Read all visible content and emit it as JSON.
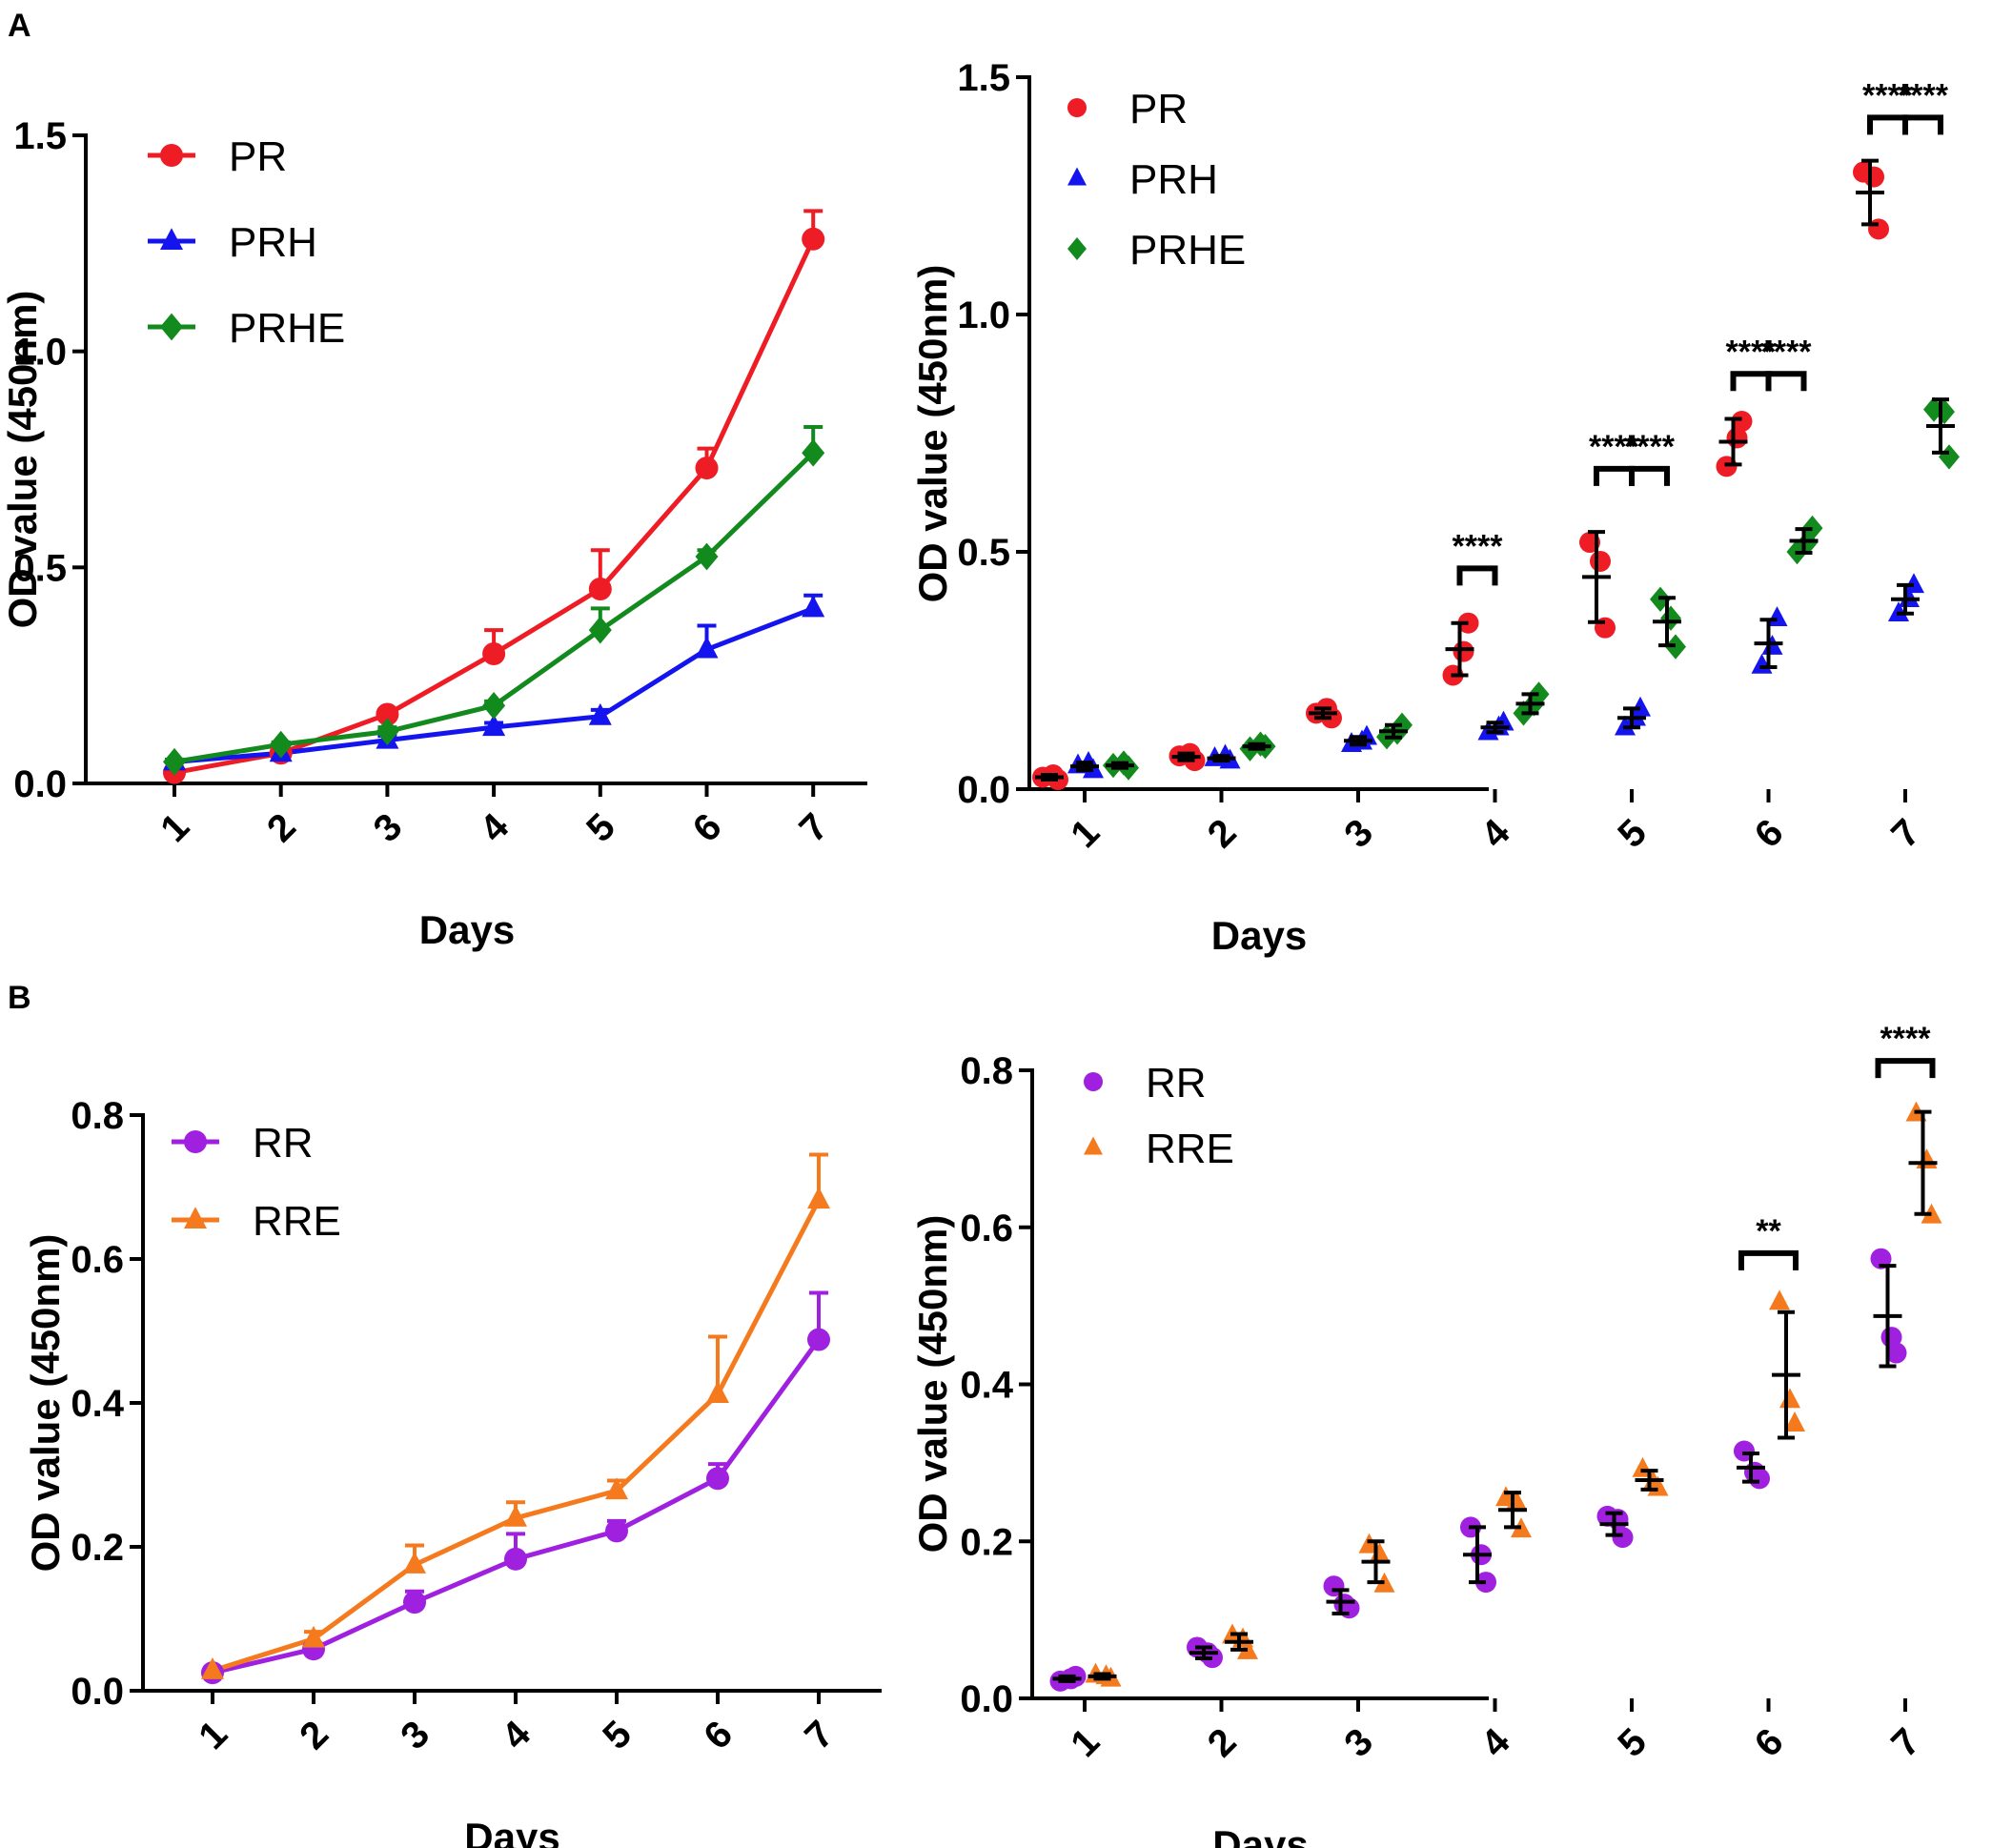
{
  "panel_labels": {
    "a": "A",
    "b": "B"
  },
  "legend_labels": {
    "p1": [
      "PR",
      "PRH",
      "PRHE"
    ],
    "p2": [
      "PR",
      "PRH",
      "PRHE"
    ],
    "p3": [
      "RR",
      "RRE"
    ],
    "p4": [
      "RR",
      "RRE"
    ]
  },
  "chart_data": [
    {
      "id": "A-left",
      "type": "line",
      "title": "",
      "xlabel": "Days",
      "ylabel": "OD value (450nm)",
      "categories": [
        "1",
        "2",
        "3",
        "4",
        "5",
        "6",
        "7"
      ],
      "yticks": [
        "0.0",
        "0.5",
        "1.0",
        "1.5"
      ],
      "ylim": [
        0,
        1.5
      ],
      "legend_position": "top-left",
      "series": [
        {
          "name": "PR",
          "color": "#ee1c24",
          "marker": "circle",
          "values": [
            0.025,
            0.07,
            0.16,
            0.3,
            0.45,
            0.73,
            1.26
          ],
          "errors": [
            0.01,
            0.01,
            0.01,
            0.055,
            0.09,
            0.045,
            0.065
          ]
        },
        {
          "name": "PRH",
          "color": "#1414ee",
          "marker": "triangle",
          "values": [
            0.05,
            0.07,
            0.1,
            0.13,
            0.155,
            0.31,
            0.405
          ],
          "errors": [
            0.005,
            0.005,
            0.01,
            0.01,
            0.015,
            0.055,
            0.03
          ]
        },
        {
          "name": "PRHE",
          "color": "#138a1e",
          "marker": "diamond",
          "values": [
            0.05,
            0.09,
            0.12,
            0.18,
            0.355,
            0.525,
            0.765
          ],
          "errors": [
            0.005,
            0.005,
            0.01,
            0.01,
            0.05,
            0.015,
            0.06
          ]
        }
      ]
    },
    {
      "id": "A-right",
      "type": "scatter",
      "title": "",
      "xlabel": "Days",
      "ylabel": "OD value (450nm)",
      "categories": [
        "1",
        "2",
        "3",
        "4",
        "5",
        "6",
        "7"
      ],
      "yticks": [
        "0.0",
        "0.5",
        "1.0",
        "1.5"
      ],
      "ylim": [
        0,
        1.5
      ],
      "legend_position": "top-left",
      "series": [
        {
          "name": "PR",
          "color": "#ee1c24",
          "marker": "circle",
          "points": [
            [
              0.025,
              0.02,
              0.03
            ],
            [
              0.07,
              0.06,
              0.075
            ],
            [
              0.16,
              0.15,
              0.17
            ],
            [
              0.24,
              0.35,
              0.29
            ],
            [
              0.52,
              0.34,
              0.48
            ],
            [
              0.68,
              0.775,
              0.74
            ],
            [
              1.3,
              1.18,
              1.29
            ]
          ],
          "means": [
            0.025,
            0.068,
            0.16,
            0.295,
            0.447,
            0.732,
            1.257
          ],
          "sd": [
            0.005,
            0.007,
            0.01,
            0.055,
            0.095,
            0.048,
            0.067
          ]
        },
        {
          "name": "PRH",
          "color": "#1414ee",
          "marker": "triangle",
          "points": [
            [
              0.05,
              0.04,
              0.055
            ],
            [
              0.065,
              0.06,
              0.07
            ],
            [
              0.095,
              0.11,
              0.1
            ],
            [
              0.12,
              0.14,
              0.13
            ],
            [
              0.13,
              0.17,
              0.15
            ],
            [
              0.26,
              0.36,
              0.3
            ],
            [
              0.37,
              0.43,
              0.4
            ]
          ],
          "means": [
            0.048,
            0.065,
            0.102,
            0.13,
            0.15,
            0.307,
            0.4
          ],
          "sd": [
            0.008,
            0.005,
            0.008,
            0.01,
            0.02,
            0.05,
            0.03
          ]
        },
        {
          "name": "PRHE",
          "color": "#138a1e",
          "marker": "diamond",
          "points": [
            [
              0.05,
              0.045,
              0.055
            ],
            [
              0.085,
              0.09,
              0.095
            ],
            [
              0.11,
              0.135,
              0.12
            ],
            [
              0.16,
              0.2,
              0.18
            ],
            [
              0.4,
              0.3,
              0.36
            ],
            [
              0.5,
              0.55,
              0.52
            ],
            [
              0.8,
              0.7,
              0.795
            ]
          ],
          "means": [
            0.05,
            0.09,
            0.122,
            0.18,
            0.353,
            0.523,
            0.765
          ],
          "sd": [
            0.005,
            0.005,
            0.013,
            0.02,
            0.05,
            0.025,
            0.056
          ]
        }
      ],
      "significance": [
        {
          "day": "4",
          "from": 0,
          "to": 1,
          "label": "****",
          "y": 0.465
        },
        {
          "day": "5",
          "from": 0,
          "to": 1,
          "label": "****",
          "y": 0.675
        },
        {
          "day": "5",
          "from": 1,
          "to": 2,
          "label": "****",
          "y": 0.675
        },
        {
          "day": "6",
          "from": 0,
          "to": 1,
          "label": "****",
          "y": 0.875
        },
        {
          "day": "6",
          "from": 1,
          "to": 2,
          "label": "****",
          "y": 0.875
        },
        {
          "day": "7",
          "from": 0,
          "to": 1,
          "label": "****",
          "y": 1.415
        },
        {
          "day": "7",
          "from": 1,
          "to": 2,
          "label": "****",
          "y": 1.415
        }
      ]
    },
    {
      "id": "B-left",
      "type": "line",
      "title": "",
      "xlabel": "Days",
      "ylabel": "OD value (450nm)",
      "categories": [
        "1",
        "2",
        "3",
        "4",
        "5",
        "6",
        "7"
      ],
      "yticks": [
        "0.0",
        "0.2",
        "0.4",
        "0.6",
        "0.8"
      ],
      "ylim": [
        0,
        0.8
      ],
      "legend_position": "top-left",
      "series": [
        {
          "name": "RR",
          "color": "#a020e0",
          "marker": "circle",
          "values": [
            0.025,
            0.058,
            0.123,
            0.183,
            0.222,
            0.295,
            0.488
          ],
          "errors": [
            0.004,
            0.006,
            0.015,
            0.035,
            0.014,
            0.02,
            0.065
          ]
        },
        {
          "name": "RRE",
          "color": "#f57a1e",
          "marker": "triangle",
          "values": [
            0.028,
            0.072,
            0.175,
            0.24,
            0.278,
            0.412,
            0.682
          ],
          "errors": [
            0.004,
            0.01,
            0.027,
            0.022,
            0.014,
            0.08,
            0.063
          ]
        }
      ]
    },
    {
      "id": "B-right",
      "type": "scatter",
      "title": "",
      "xlabel": "Days",
      "ylabel": "OD value (450nm)",
      "categories": [
        "1",
        "2",
        "3",
        "4",
        "5",
        "6",
        "7"
      ],
      "yticks": [
        "0.0",
        "0.2",
        "0.4",
        "0.6",
        "0.8"
      ],
      "ylim": [
        0,
        0.8
      ],
      "legend_position": "top-left",
      "series": [
        {
          "name": "RR",
          "color": "#a020e0",
          "marker": "circle",
          "points": [
            [
              0.022,
              0.028,
              0.025
            ],
            [
              0.065,
              0.052,
              0.058
            ],
            [
              0.143,
              0.115,
              0.12
            ],
            [
              0.218,
              0.148,
              0.183
            ],
            [
              0.232,
              0.205,
              0.228
            ],
            [
              0.315,
              0.28,
              0.288
            ],
            [
              0.56,
              0.44,
              0.46
            ]
          ],
          "means": [
            0.025,
            0.058,
            0.123,
            0.183,
            0.222,
            0.294,
            0.487
          ],
          "sd": [
            0.003,
            0.007,
            0.015,
            0.035,
            0.014,
            0.018,
            0.064
          ]
        },
        {
          "name": "RRE",
          "color": "#f57a1e",
          "marker": "triangle",
          "points": [
            [
              0.03,
              0.025,
              0.028
            ],
            [
              0.08,
              0.06,
              0.075
            ],
            [
              0.195,
              0.145,
              0.183
            ],
            [
              0.255,
              0.215,
              0.25
            ],
            [
              0.292,
              0.268,
              0.275
            ],
            [
              0.505,
              0.35,
              0.38
            ],
            [
              0.745,
              0.615,
              0.685
            ]
          ],
          "means": [
            0.028,
            0.072,
            0.174,
            0.24,
            0.278,
            0.412,
            0.682
          ],
          "sd": [
            0.003,
            0.01,
            0.026,
            0.022,
            0.012,
            0.08,
            0.065
          ]
        }
      ],
      "significance": [
        {
          "day": "6",
          "from": 0,
          "to": 1,
          "label": "**",
          "y": 0.567
        },
        {
          "day": "7",
          "from": 0,
          "to": 1,
          "label": "****",
          "y": 0.812
        }
      ]
    }
  ]
}
